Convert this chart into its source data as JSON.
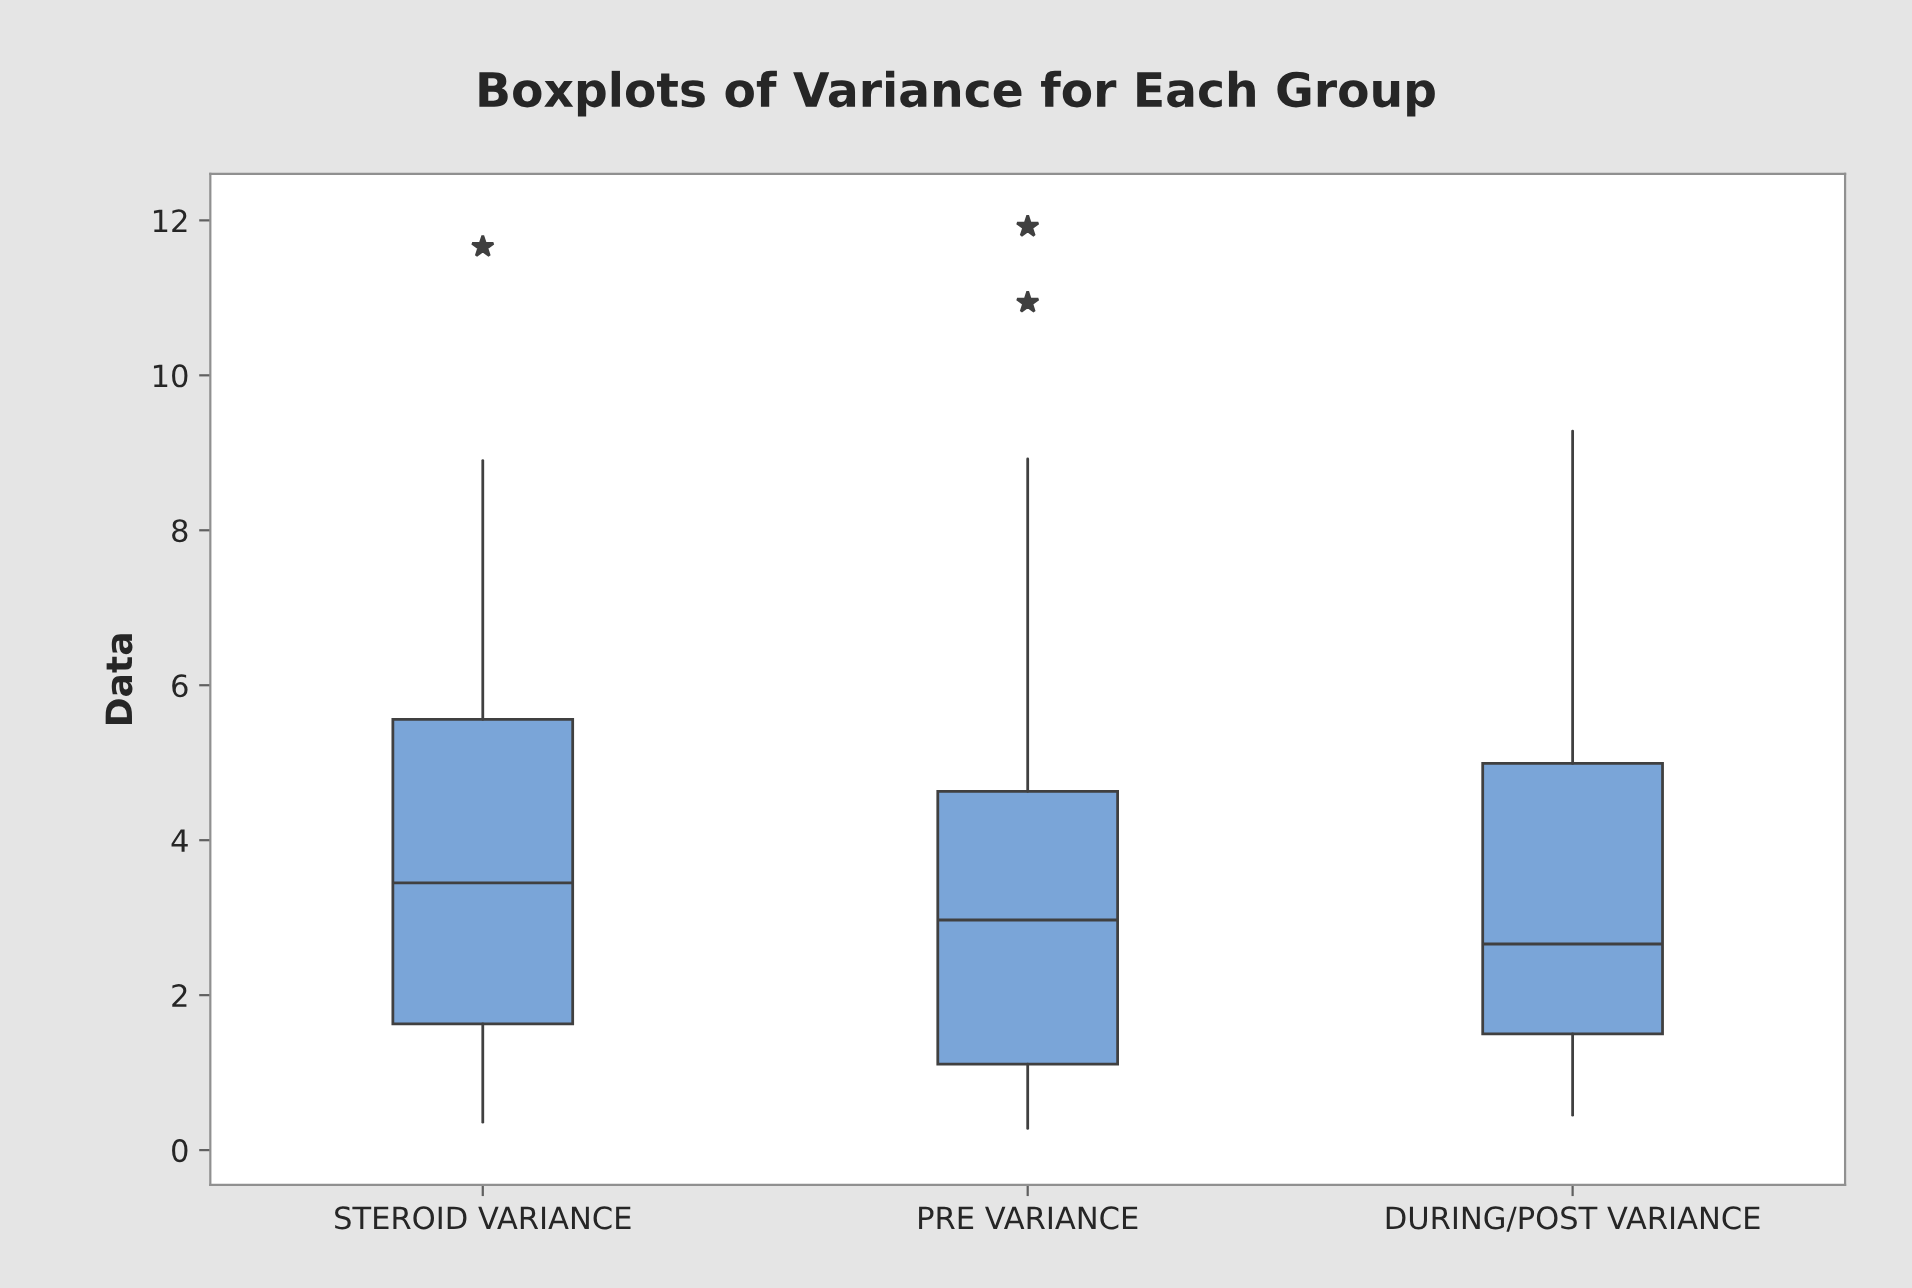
{
  "chart_data": {
    "type": "box",
    "title": "Boxplots of Variance for Each Group",
    "ylabel": "Data",
    "categories": [
      "STEROID VARIANCE",
      "PRE VARIANCE",
      "DURING/POST VARIANCE"
    ],
    "boxes": [
      {
        "low": 0.36,
        "q1": 1.63,
        "median": 3.45,
        "q3": 5.56,
        "high": 8.9,
        "outliers": [
          11.66
        ]
      },
      {
        "low": 0.28,
        "q1": 1.11,
        "median": 2.97,
        "q3": 4.63,
        "high": 8.92,
        "outliers": [
          11.92,
          10.94
        ]
      },
      {
        "low": 0.45,
        "q1": 1.5,
        "median": 2.66,
        "q3": 4.99,
        "high": 9.28
      }
    ],
    "color": "#7aa5d8",
    "marker": "star",
    "ylim": [
      -0.45,
      12.6
    ],
    "yticks": [
      0,
      2,
      4,
      6,
      8,
      10,
      12
    ],
    "grid": false
  }
}
